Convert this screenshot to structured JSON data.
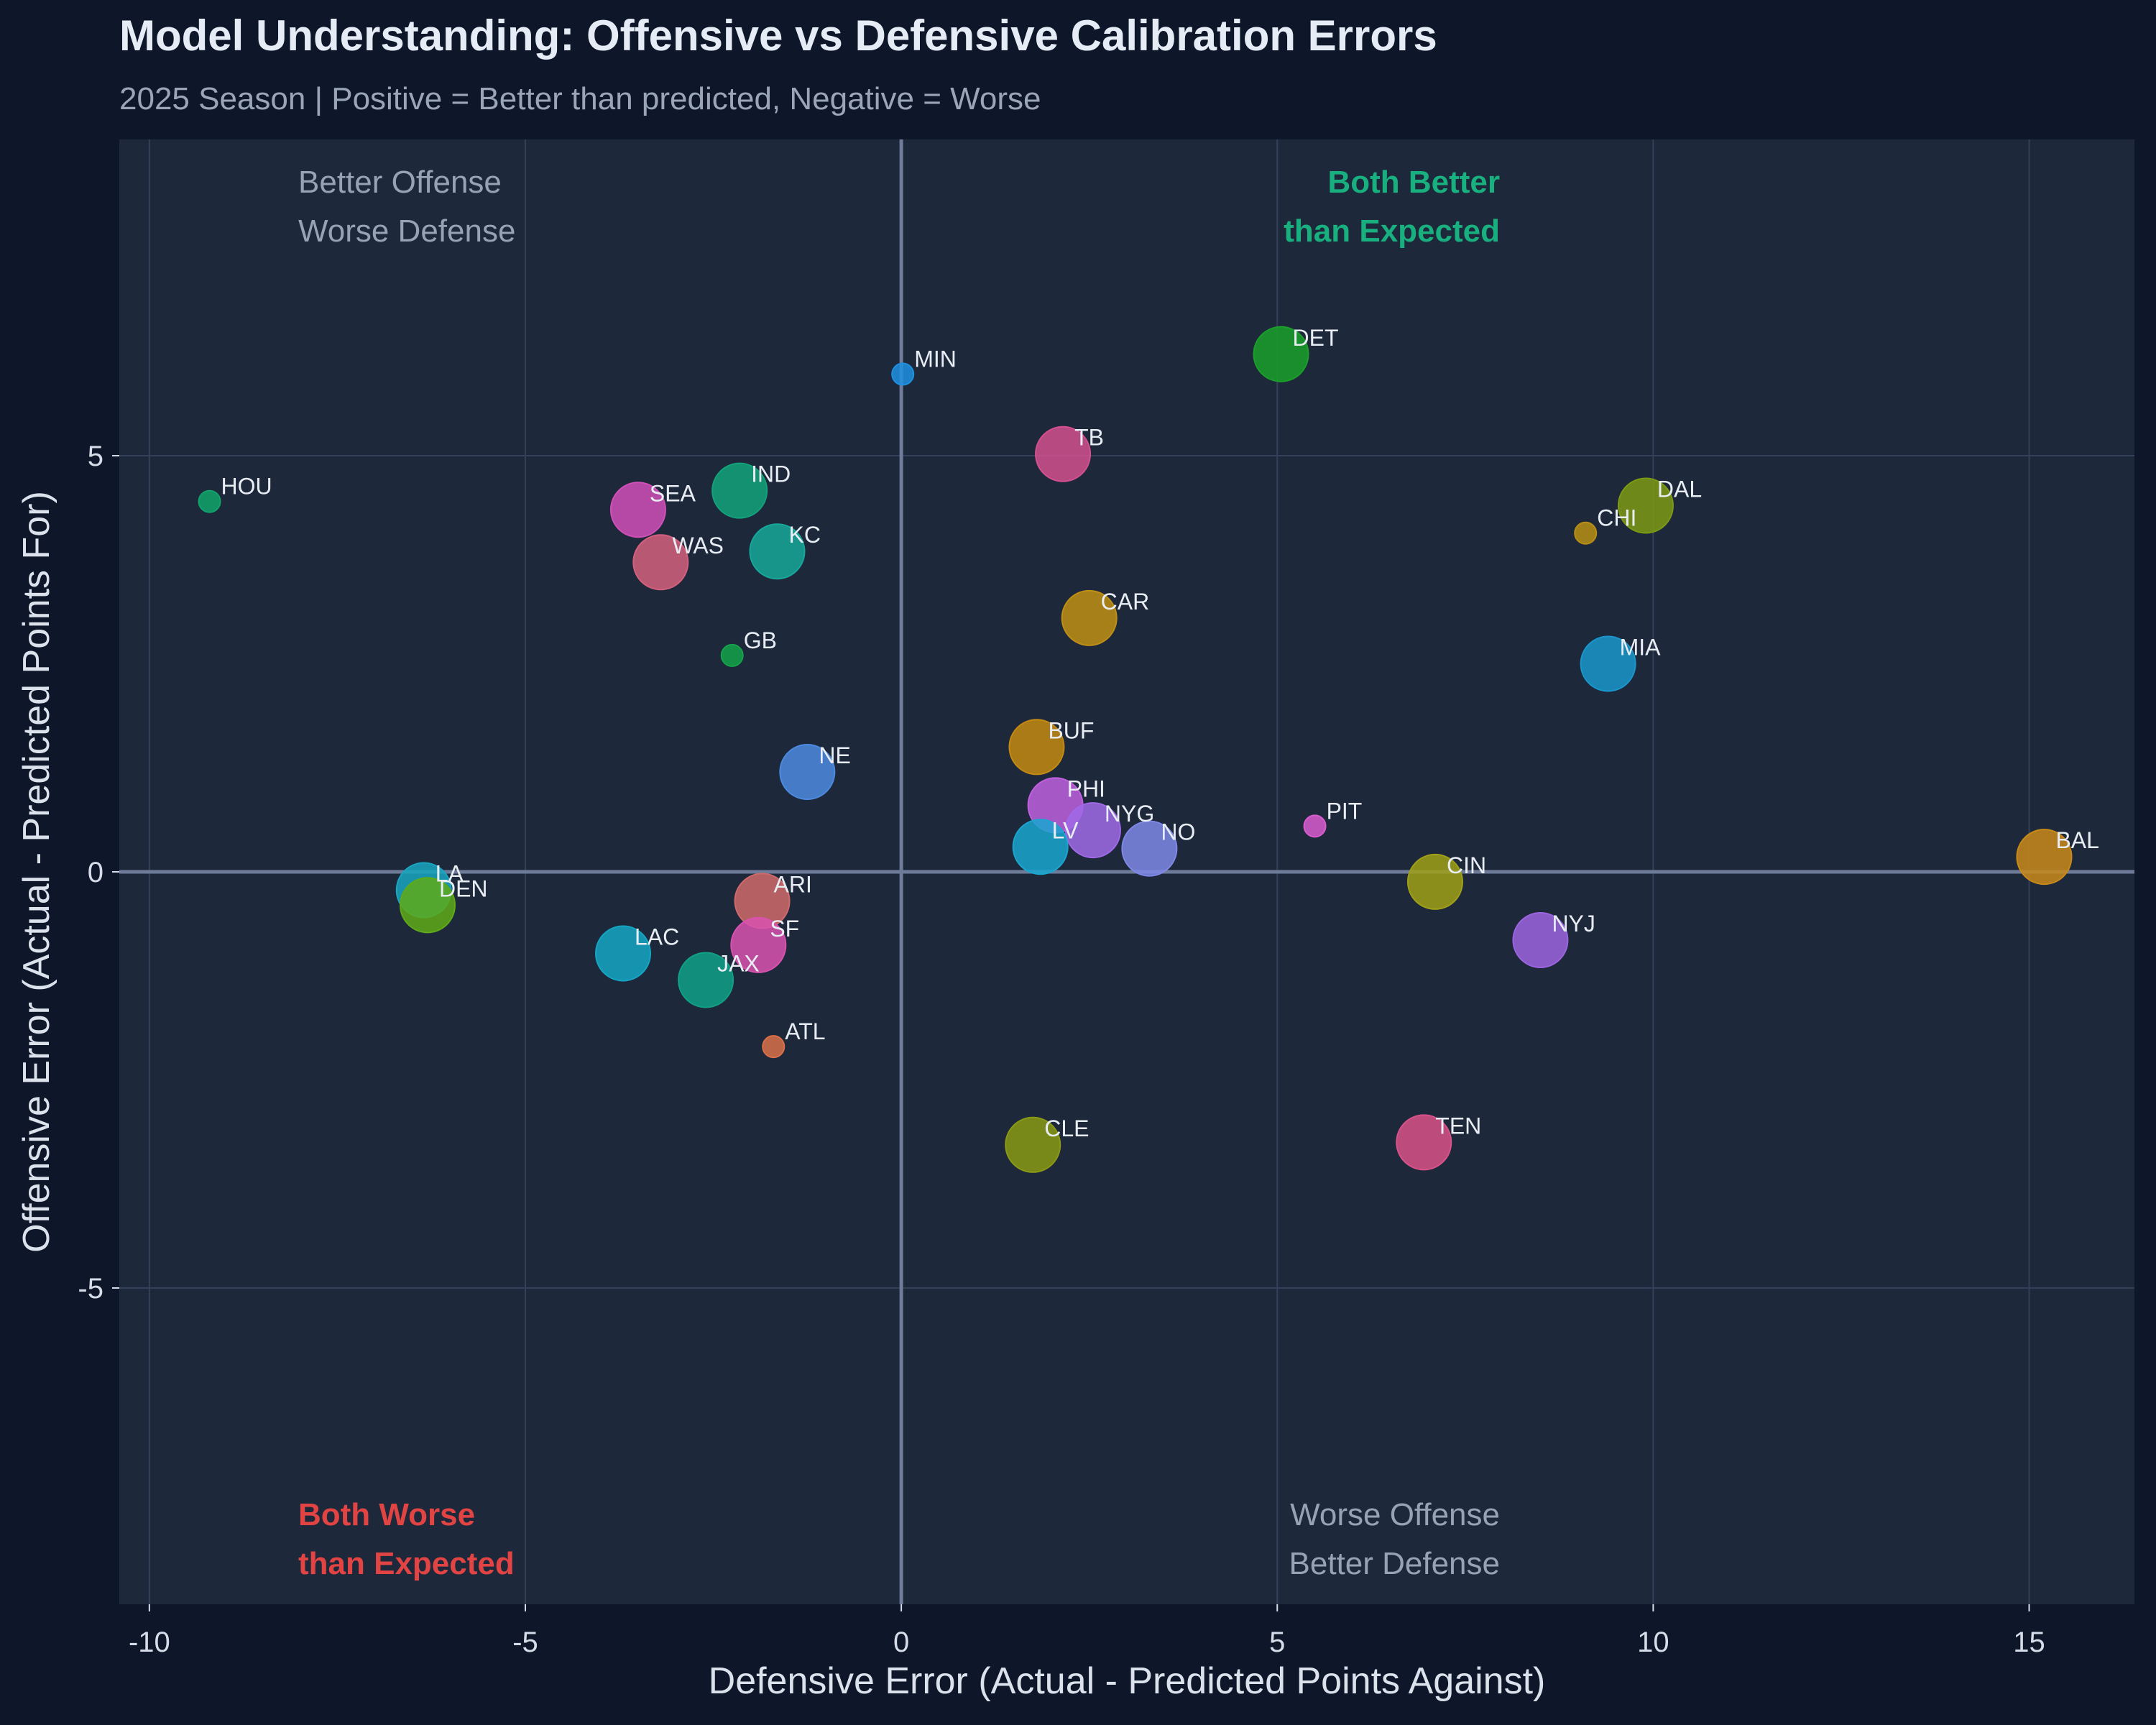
{
  "chart_data": {
    "type": "scatter",
    "title": "Model Understanding: Offensive vs Defensive Calibration Errors",
    "subtitle": "2025 Season | Positive = Better than predicted, Negative = Worse",
    "xlabel": "Defensive Error (Actual - Predicted Points Against)",
    "ylabel": "Offensive Error (Actual - Predicted Points For)",
    "xlim": [
      -10.4,
      16.4
    ],
    "ylim": [
      -8.8,
      8.8
    ],
    "xticks": [
      -10,
      -5,
      0,
      5,
      10,
      15
    ],
    "yticks": [
      -5,
      0,
      5
    ],
    "xtick_labels": [
      "-10",
      "-5",
      "0",
      "5",
      "10",
      "15"
    ],
    "ytick_labels": [
      "-5",
      "0",
      "5"
    ],
    "grid": true,
    "quadrant_labels": {
      "top_left": [
        "Better Offense",
        "Worse Defense"
      ],
      "top_right": [
        "Both Better",
        "than Expected"
      ],
      "bottom_left": [
        "Both Worse",
        "than Expected"
      ],
      "bottom_right": [
        "Worse Offense",
        "Better Defense"
      ]
    },
    "points": [
      {
        "team": "HOU",
        "x": -9.2,
        "y": 4.45,
        "size": "small",
        "color": "#10a36b"
      },
      {
        "team": "SEA",
        "x": -3.5,
        "y": 4.35,
        "size": "large",
        "color": "#d14fb8"
      },
      {
        "team": "IND",
        "x": -2.15,
        "y": 4.58,
        "size": "large",
        "color": "#12a37a"
      },
      {
        "team": "WAS",
        "x": -3.2,
        "y": 3.72,
        "size": "large",
        "color": "#d4607e"
      },
      {
        "team": "KC",
        "x": -1.65,
        "y": 3.85,
        "size": "large",
        "color": "#16a89a"
      },
      {
        "team": "GB",
        "x": -2.25,
        "y": 2.6,
        "size": "small",
        "color": "#14a34a"
      },
      {
        "team": "MIN",
        "x": 0.02,
        "y": 5.98,
        "size": "small",
        "color": "#1e90e0"
      },
      {
        "team": "DET",
        "x": 5.05,
        "y": 6.22,
        "size": "large",
        "color": "#1aa02a"
      },
      {
        "team": "TB",
        "x": 2.15,
        "y": 5.02,
        "size": "large",
        "color": "#d4508f"
      },
      {
        "team": "DAL",
        "x": 9.9,
        "y": 4.4,
        "size": "large",
        "color": "#7d9a14"
      },
      {
        "team": "CHI",
        "x": 9.1,
        "y": 4.07,
        "size": "small",
        "color": "#b88f14"
      },
      {
        "team": "CAR",
        "x": 2.5,
        "y": 3.05,
        "size": "large",
        "color": "#c08f14"
      },
      {
        "team": "MIA",
        "x": 9.4,
        "y": 2.5,
        "size": "large",
        "color": "#1a96cc"
      },
      {
        "team": "BUF",
        "x": 1.8,
        "y": 1.5,
        "size": "large",
        "color": "#c48a12"
      },
      {
        "team": "NE",
        "x": -1.25,
        "y": 1.2,
        "size": "large",
        "color": "#4c8ae0"
      },
      {
        "team": "PHI",
        "x": 2.05,
        "y": 0.8,
        "size": "large",
        "color": "#c060e0"
      },
      {
        "team": "NYG",
        "x": 2.55,
        "y": 0.5,
        "size": "large",
        "color": "#a06ae8"
      },
      {
        "team": "LV",
        "x": 1.85,
        "y": 0.3,
        "size": "large",
        "color": "#1aa6d0"
      },
      {
        "team": "NO",
        "x": 3.3,
        "y": 0.28,
        "size": "large",
        "color": "#7f88e6"
      },
      {
        "team": "PIT",
        "x": 5.5,
        "y": 0.55,
        "size": "small",
        "color": "#d95cd0"
      },
      {
        "team": "BAL",
        "x": 15.2,
        "y": 0.18,
        "size": "large",
        "color": "#c98a1a"
      },
      {
        "team": "CIN",
        "x": 7.1,
        "y": -0.12,
        "size": "large",
        "color": "#a0a018"
      },
      {
        "team": "LA",
        "x": -6.35,
        "y": -0.22,
        "size": "large",
        "color": "#18a6c0"
      },
      {
        "team": "DEN",
        "x": -6.3,
        "y": -0.4,
        "size": "large",
        "color": "#5faa18"
      },
      {
        "team": "ARI",
        "x": -1.85,
        "y": -0.35,
        "size": "large",
        "color": "#d06a6a"
      },
      {
        "team": "SF",
        "x": -1.9,
        "y": -0.88,
        "size": "large",
        "color": "#d952b0"
      },
      {
        "team": "NYJ",
        "x": 8.5,
        "y": -0.82,
        "size": "large",
        "color": "#9c64e0"
      },
      {
        "team": "LAC",
        "x": -3.7,
        "y": -0.98,
        "size": "large",
        "color": "#14a6c4"
      },
      {
        "team": "JAX",
        "x": -2.6,
        "y": -1.3,
        "size": "large",
        "color": "#10a088"
      },
      {
        "team": "ATL",
        "x": -1.7,
        "y": -2.1,
        "size": "small",
        "color": "#d9704a"
      },
      {
        "team": "CLE",
        "x": 1.75,
        "y": -3.28,
        "size": "large",
        "color": "#8a9a14"
      },
      {
        "team": "TEN",
        "x": 6.95,
        "y": -3.25,
        "size": "large",
        "color": "#d9528a"
      }
    ]
  },
  "colors": {
    "page_bg": "#0e172a",
    "plot_bg": "#1e283b",
    "grid": "#34405a",
    "axis_line": "#6e7c99",
    "title": "#e6ecf5",
    "subtitle": "#9aa6b8",
    "tick": "#d6dde8",
    "point_label": "#e8edf4",
    "quad_neutral": "#97a2b4",
    "quad_good": "#18b07e",
    "quad_bad": "#e24444"
  }
}
